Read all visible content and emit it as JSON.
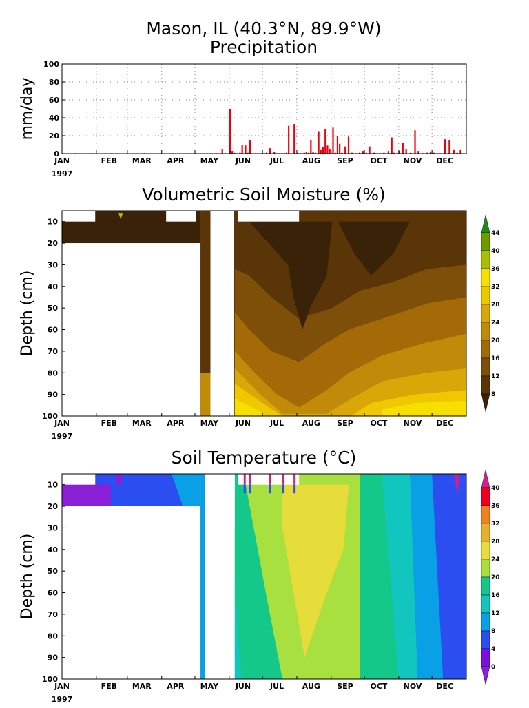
{
  "figure": {
    "title": "Mason, IL  (40.3°N, 89.9°W)",
    "year": "1997"
  },
  "chart_data": [
    {
      "type": "bar",
      "title": "Precipitation",
      "ylabel": "mm/day",
      "ylim": [
        0,
        100
      ],
      "yticks": [
        "0",
        "20",
        "40",
        "60",
        "80",
        "100"
      ],
      "months": [
        "JAN",
        "FEB",
        "MAR",
        "APR",
        "MAY",
        "JUN",
        "JUL",
        "AUG",
        "SEP",
        "OCT",
        "NOV",
        "DEC"
      ],
      "grid": true,
      "color": "#e8000b",
      "series": [
        {
          "x": [
            1,
            5,
            12,
            20,
            28,
            35,
            45,
            60,
            75,
            90,
            100,
            110,
            115,
            121,
            126,
            140,
            145,
            148,
            152,
            154,
            156,
            158,
            161,
            163,
            166,
            168,
            170,
            175,
            180,
            183,
            185,
            188,
            192,
            196,
            199,
            201,
            203,
            205,
            210,
            213,
            216,
            219,
            221,
            223,
            225,
            227,
            229,
            232,
            234,
            236,
            238,
            240,
            242,
            245,
            247,
            249,
            251,
            253,
            256,
            259,
            262,
            266,
            269,
            272,
            275,
            278,
            282,
            285,
            288,
            291,
            295,
            298,
            300,
            303,
            305,
            308,
            311,
            315,
            319,
            322,
            326,
            330,
            333,
            336,
            339,
            342,
            346,
            350,
            354,
            357,
            360,
            363
          ],
          "y": [
            0.5,
            0.3,
            0.5,
            0.4,
            0.5,
            0.3,
            0.5,
            0.4,
            0.5,
            0.4,
            0.5,
            0.4,
            0.5,
            0.5,
            0.4,
            0.5,
            5,
            0.5,
            50,
            3,
            1,
            0.5,
            1,
            10,
            9,
            1,
            15,
            0.5,
            0.5,
            0.5,
            1,
            6,
            2,
            0.5,
            0.5,
            0.5,
            1,
            31,
            33,
            1,
            0.5,
            1,
            2,
            1,
            15,
            2,
            1,
            25,
            4,
            7,
            27,
            9,
            5,
            29,
            1,
            20,
            11,
            1,
            8,
            19,
            1,
            0.5,
            1,
            3,
            1,
            8,
            1,
            0.5,
            0.5,
            1,
            3,
            18,
            1,
            0.5,
            3,
            12,
            5,
            1,
            26,
            3,
            0.5,
            1,
            2,
            1,
            0.5,
            0.5,
            16,
            15,
            4,
            1,
            4,
            0.5
          ]
        }
      ]
    },
    {
      "type": "heatmap",
      "title": "Volumetric Soil Moisture (%)",
      "ylabel": "Depth (cm)",
      "ylim": [
        100,
        5
      ],
      "yticks": [
        "10",
        "20",
        "30",
        "40",
        "50",
        "60",
        "70",
        "80",
        "90",
        "100"
      ],
      "months": [
        "JAN",
        "FEB",
        "MAR",
        "APR",
        "MAY",
        "JUN",
        "JUL",
        "AUG",
        "SEP",
        "OCT",
        "NOV",
        "DEC"
      ],
      "colorbar_labels": [
        "8",
        "12",
        "16",
        "20",
        "24",
        "28",
        "32",
        "36",
        "40",
        "44"
      ],
      "levels": [
        8,
        12,
        16,
        20,
        24,
        28,
        32,
        36,
        40,
        44
      ],
      "colors": [
        "#3a2208",
        "#5a3508",
        "#7e4f08",
        "#a56a08",
        "#c08b08",
        "#d9a808",
        "#f0c800",
        "#f7e000",
        "#a7c000",
        "#6a9c00",
        "#1c8a1c"
      ],
      "missing": [
        [
          5,
          10,
          1,
          31
        ],
        [
          5,
          10,
          95,
          122
        ],
        [
          20,
          100,
          1,
          126
        ],
        [
          5,
          100,
          135,
          156
        ],
        [
          5,
          10,
          160,
          215
        ]
      ]
    },
    {
      "type": "heatmap",
      "title": "Soil Temperature (°C)",
      "ylabel": "Depth (cm)",
      "ylim": [
        100,
        5
      ],
      "yticks": [
        "10",
        "20",
        "30",
        "40",
        "50",
        "60",
        "70",
        "80",
        "90",
        "100"
      ],
      "months": [
        "JAN",
        "FEB",
        "MAR",
        "APR",
        "MAY",
        "JUN",
        "JUL",
        "AUG",
        "SEP",
        "OCT",
        "NOV",
        "DEC"
      ],
      "colorbar_labels": [
        "0",
        "4",
        "8",
        "12",
        "16",
        "20",
        "24",
        "28",
        "32",
        "36",
        "40"
      ],
      "levels": [
        0,
        4,
        8,
        12,
        16,
        20,
        24,
        28,
        32,
        36,
        40
      ],
      "colors": [
        "#8a1fd6",
        "#7a10e0",
        "#2a4ef0",
        "#0aa0e6",
        "#12c6c0",
        "#14c88a",
        "#a8e040",
        "#e6dc3a",
        "#e8b030",
        "#f08020",
        "#f00020",
        "#d0208a"
      ],
      "missing": [
        [
          5,
          10,
          1,
          31
        ],
        [
          20,
          100,
          1,
          126
        ],
        [
          5,
          100,
          135,
          156
        ],
        [
          5,
          10,
          160,
          215
        ]
      ]
    }
  ]
}
